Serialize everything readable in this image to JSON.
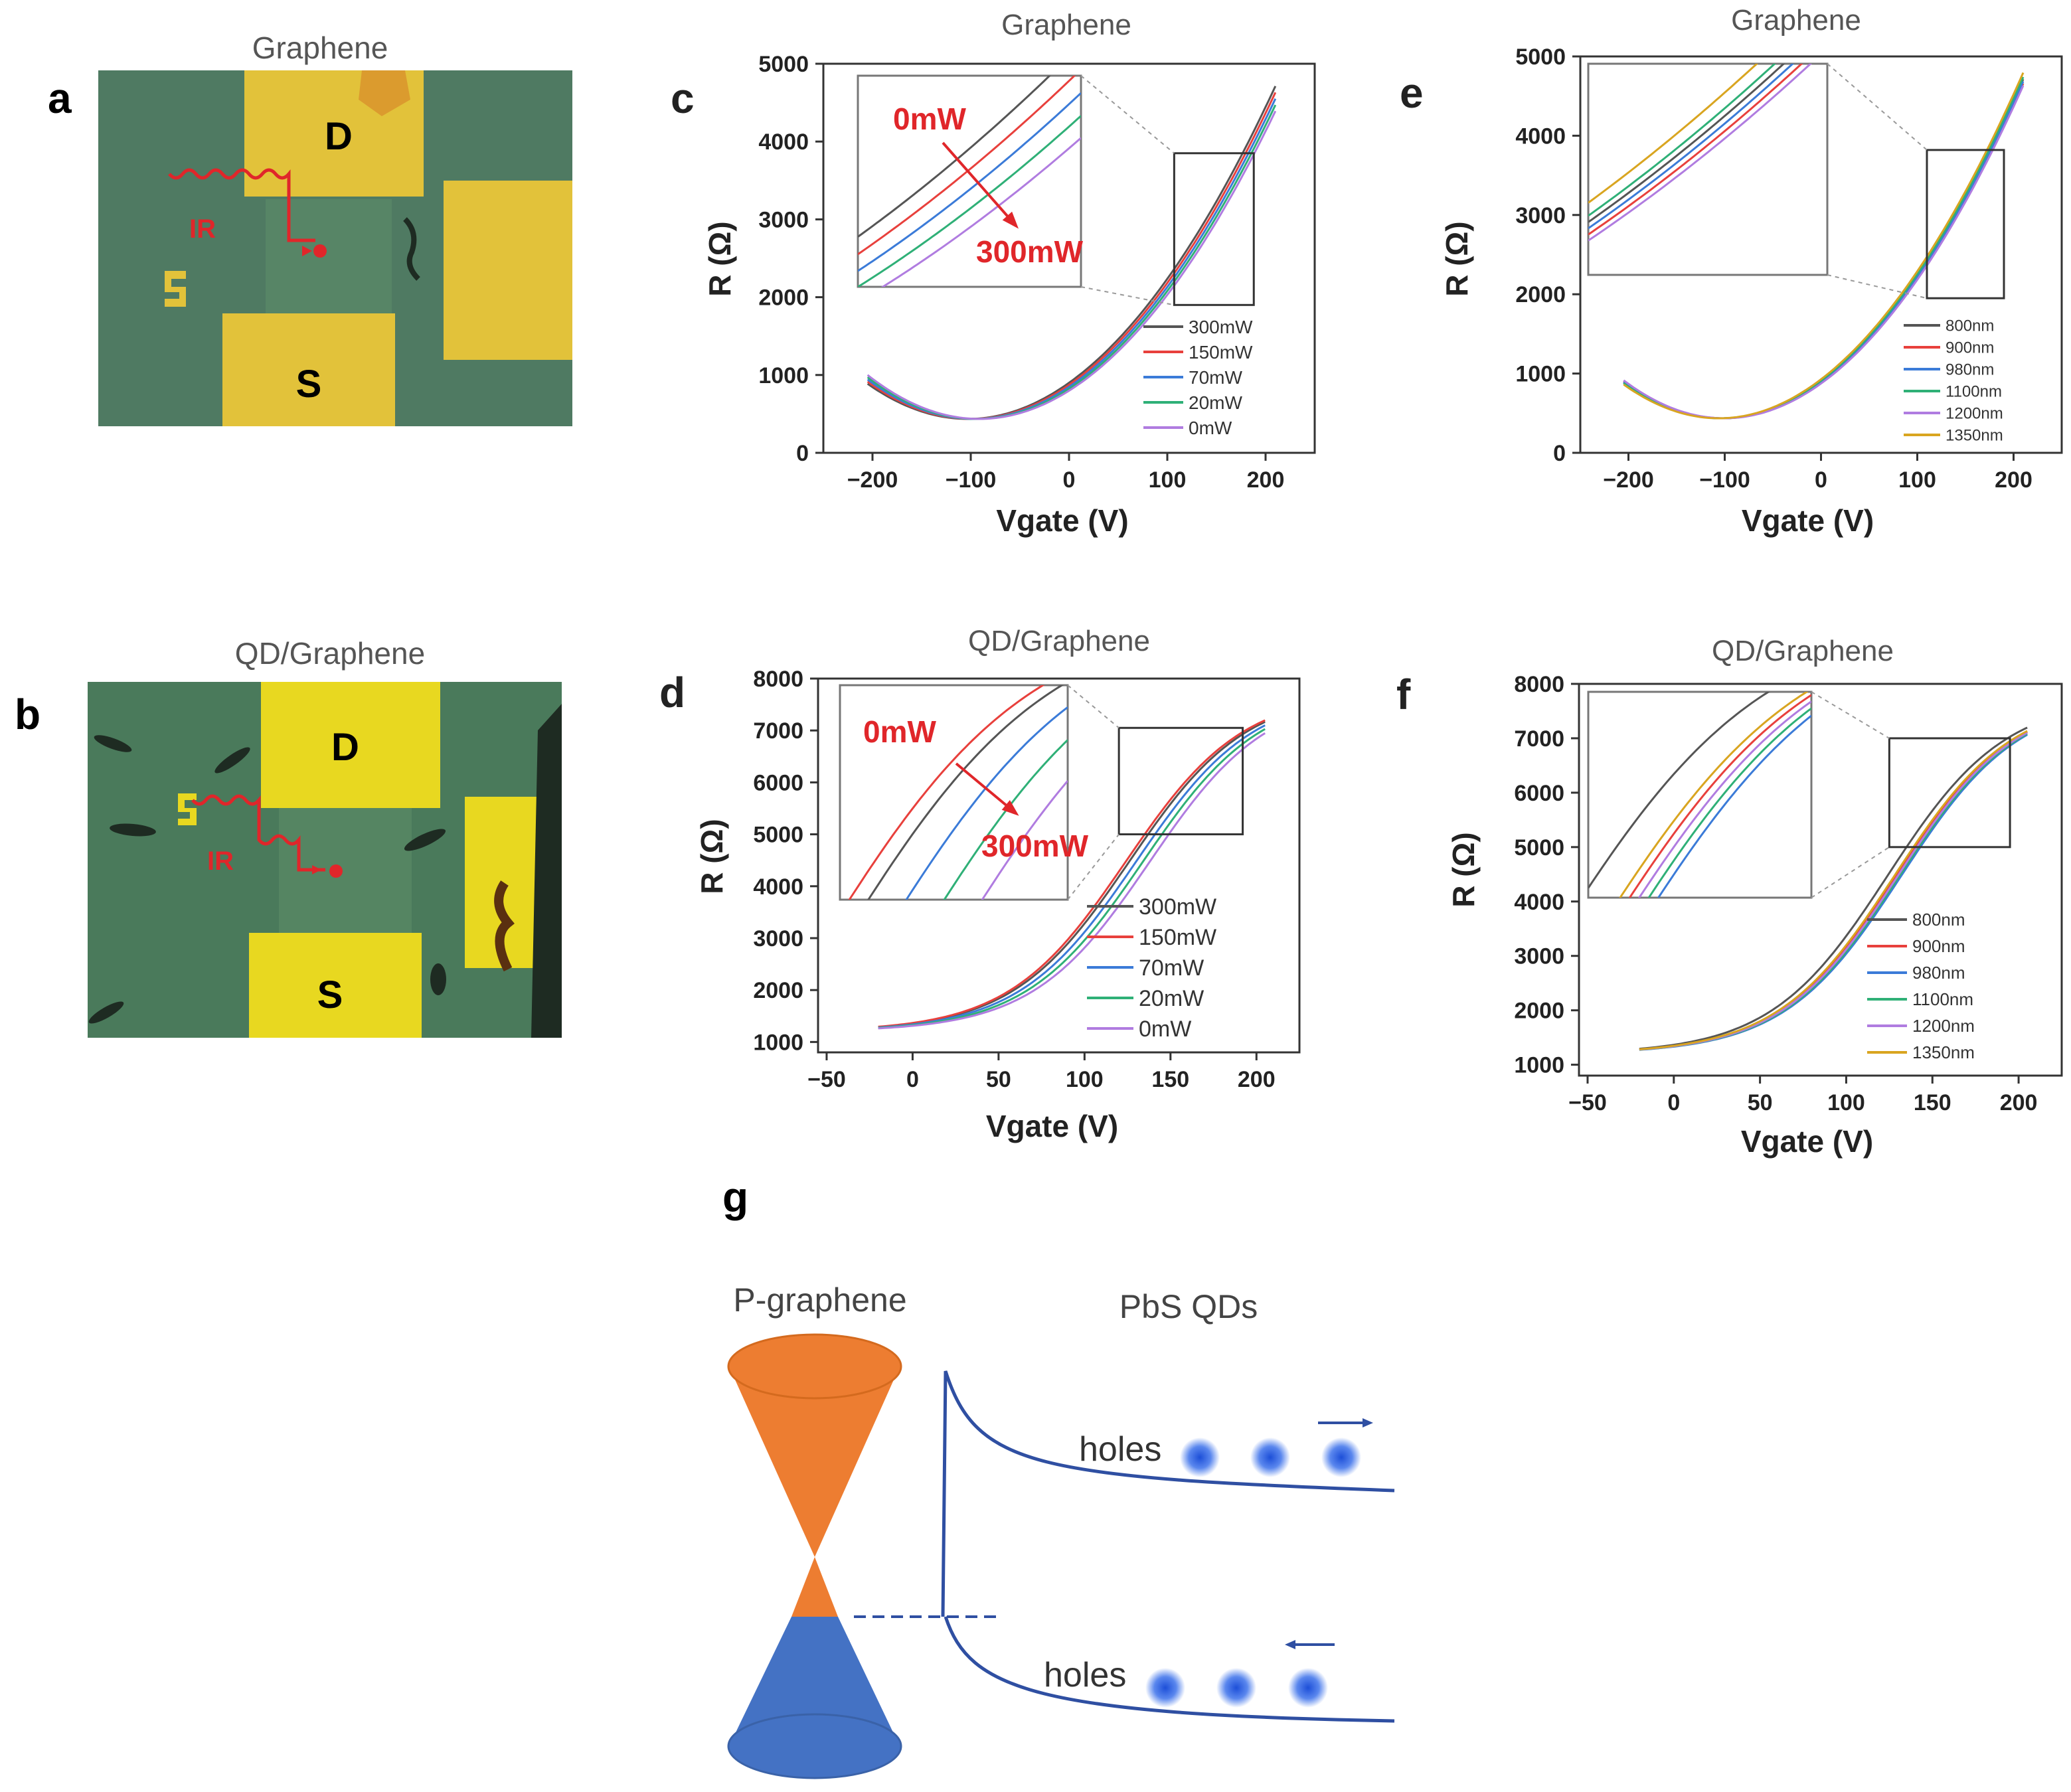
{
  "panels": {
    "a": {
      "letter": "a",
      "title": "Graphene",
      "drain": "D",
      "source": "S",
      "ir": "IR"
    },
    "b": {
      "letter": "b",
      "title": "QD/Graphene",
      "drain": "D",
      "source": "S",
      "ir": "IR"
    },
    "g": {
      "letter": "g",
      "left_title": "P-graphene",
      "right_title": "PbS QDs",
      "upper_label": "holes",
      "lower_label": "holes"
    }
  },
  "colors": {
    "substrate": "#4f7a62",
    "electrode": "#e2c23a",
    "ir": "#e0262a",
    "cone_upper": "#ed7d31",
    "cone_lower": "#4472c4",
    "band": "#2f4fa2",
    "hole": "#3d6fe0"
  },
  "chart_data": [
    {
      "id": "c",
      "letter": "c",
      "type": "line",
      "title": "Graphene",
      "xlabel": "Vgate (V)",
      "ylabel": "R (Ω)",
      "xlim": [
        -250,
        250
      ],
      "ylim": [
        0,
        5000
      ],
      "xticks": [
        -200,
        -100,
        0,
        100,
        200
      ],
      "yticks": [
        0,
        1000,
        2000,
        3000,
        4000,
        5000
      ],
      "xtick_labels": [
        "−200",
        "−100",
        "0",
        "100",
        "200"
      ],
      "ytick_labels": [
        "0",
        "1000",
        "2000",
        "3000",
        "4000",
        "5000"
      ],
      "curve": "quad",
      "curve_params": {
        "a": 0.0436,
        "b": 9.0,
        "c": 900,
        "vmin": -205,
        "vmax": 210
      },
      "series": [
        {
          "name": "300mW",
          "color": "#555555",
          "shift": 0
        },
        {
          "name": "150mW",
          "color": "#e8403c",
          "shift": -3
        },
        {
          "name": "70mW",
          "color": "#3b7bd8",
          "shift": -6
        },
        {
          "name": "20mW",
          "color": "#2fb077",
          "shift": -9
        },
        {
          "name": "0mW",
          "color": "#b07ce0",
          "shift": -12
        }
      ],
      "inset_annot": {
        "from": "0mW",
        "to": "300mW"
      },
      "zoom": {
        "x": [
          107,
          188
        ],
        "y": [
          1900,
          3850
        ]
      }
    },
    {
      "id": "e",
      "letter": "e",
      "type": "line",
      "title": "Graphene",
      "xlabel": "Vgate (V)",
      "ylabel": "R (Ω)",
      "xlim": [
        -250,
        250
      ],
      "ylim": [
        0,
        5000
      ],
      "xticks": [
        -200,
        -100,
        0,
        100,
        200
      ],
      "yticks": [
        0,
        1000,
        2000,
        3000,
        4000,
        5000
      ],
      "xtick_labels": [
        "−200",
        "−100",
        "0",
        "100",
        "200"
      ],
      "ytick_labels": [
        "0",
        "1000",
        "2000",
        "3000",
        "4000",
        "5000"
      ],
      "curve": "quad",
      "curve_params": {
        "a": 0.0436,
        "b": 9.0,
        "c": 900,
        "vmin": -205,
        "vmax": 210
      },
      "series": [
        {
          "name": "800nm",
          "color": "#555555",
          "shift": 0
        },
        {
          "name": "900nm",
          "color": "#e8403c",
          "shift": -2
        },
        {
          "name": "980nm",
          "color": "#3b7bd8",
          "shift": -1
        },
        {
          "name": "1100nm",
          "color": "#2fb077",
          "shift": 1
        },
        {
          "name": "1200nm",
          "color": "#b07ce0",
          "shift": -3
        },
        {
          "name": "1350nm",
          "color": "#d9a520",
          "shift": 3
        }
      ],
      "zoom": {
        "x": [
          110,
          190
        ],
        "y": [
          1950,
          3820
        ]
      }
    },
    {
      "id": "d",
      "letter": "d",
      "type": "line",
      "title": "QD/Graphene",
      "xlabel": "Vgate (V)",
      "ylabel": "R (Ω)",
      "xlim": [
        -55,
        225
      ],
      "ylim": [
        800,
        8000
      ],
      "xticks": [
        -50,
        0,
        50,
        100,
        150,
        200
      ],
      "yticks": [
        1000,
        2000,
        3000,
        4000,
        5000,
        6000,
        7000,
        8000
      ],
      "xtick_labels": [
        "−50",
        "0",
        "50",
        "100",
        "150",
        "200"
      ],
      "ytick_labels": [
        "1000",
        "2000",
        "3000",
        "4000",
        "5000",
        "6000",
        "7000",
        "8000"
      ],
      "curve": "sig",
      "curve_params": {
        "base": 1200,
        "amp": 6550,
        "center": 130,
        "width": 34,
        "vmin": -20,
        "vmax": 205
      },
      "series": [
        {
          "name": "300mW",
          "color": "#555555",
          "shift": 4
        },
        {
          "name": "150mW",
          "color": "#e8403c",
          "shift": 6
        },
        {
          "name": "70mW",
          "color": "#3b7bd8",
          "shift": 0
        },
        {
          "name": "20mW",
          "color": "#2fb077",
          "shift": -4
        },
        {
          "name": "0mW",
          "color": "#b07ce0",
          "shift": -8
        }
      ],
      "inset_annot": {
        "from": "0mW",
        "to": "300mW"
      },
      "zoom": {
        "x": [
          120,
          192
        ],
        "y": [
          5000,
          7050
        ]
      }
    },
    {
      "id": "f",
      "letter": "f",
      "type": "line",
      "title": "QD/Graphene",
      "xlabel": "Vgate (V)",
      "ylabel": "R (Ω)",
      "xlim": [
        -55,
        225
      ],
      "ylim": [
        800,
        8000
      ],
      "xticks": [
        -50,
        0,
        50,
        100,
        150,
        200
      ],
      "yticks": [
        1000,
        2000,
        3000,
        4000,
        5000,
        6000,
        7000,
        8000
      ],
      "xtick_labels": [
        "−50",
        "0",
        "50",
        "100",
        "150",
        "200"
      ],
      "ytick_labels": [
        "1000",
        "2000",
        "3000",
        "4000",
        "5000",
        "6000",
        "7000",
        "8000"
      ],
      "curve": "sig",
      "curve_params": {
        "base": 1200,
        "amp": 6550,
        "center": 130,
        "width": 34,
        "vmin": -20,
        "vmax": 205
      },
      "series": [
        {
          "name": "800nm",
          "color": "#555555",
          "shift": 6
        },
        {
          "name": "900nm",
          "color": "#e8403c",
          "shift": 1
        },
        {
          "name": "980nm",
          "color": "#3b7bd8",
          "shift": -2
        },
        {
          "name": "1100nm",
          "color": "#2fb077",
          "shift": -1
        },
        {
          "name": "1200nm",
          "color": "#b07ce0",
          "shift": 0
        },
        {
          "name": "1350nm",
          "color": "#d9a520",
          "shift": 2
        }
      ],
      "zoom": {
        "x": [
          125,
          195
        ],
        "y": [
          5000,
          7000
        ]
      }
    }
  ]
}
